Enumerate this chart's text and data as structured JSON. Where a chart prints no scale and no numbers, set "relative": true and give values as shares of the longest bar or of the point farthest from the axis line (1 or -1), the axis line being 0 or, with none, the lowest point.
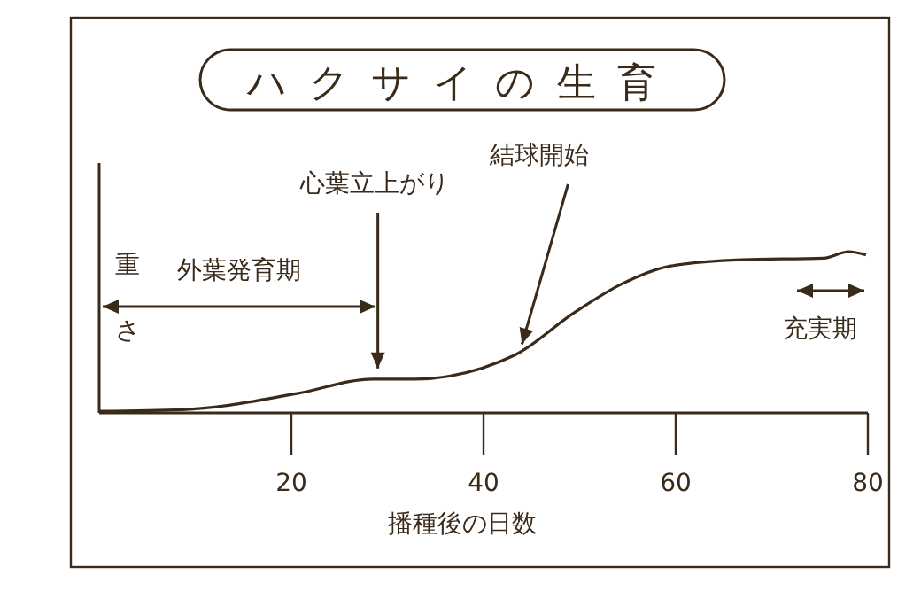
{
  "chart_data": {
    "type": "line",
    "title": "ハクサイの生育",
    "xlabel": "播種後の日数",
    "ylabel": "重さ",
    "relative": true,
    "xlim": [
      0,
      80
    ],
    "xticks": [
      20,
      40,
      60,
      80
    ],
    "grid": false,
    "marker": "none",
    "line_style": "solid",
    "series": [
      {
        "color": "#3a2a1a",
        "x": [
          0,
          8.7,
          20.6,
          28.5,
          32.8,
          43.3,
          49.4,
          54.4,
          59.4,
          66.9,
          75.4,
          78,
          79.8
        ],
        "values": [
          0.01,
          0.02,
          0.12,
          0.21,
          0.21,
          0.36,
          0.62,
          0.8,
          0.91,
          0.95,
          0.96,
          1,
          0.98
        ]
      }
    ],
    "annotations": [
      {
        "text": "心葉立上がり",
        "x": 29,
        "y": 0.21
      },
      {
        "text": "結球開始",
        "x": 44,
        "y": 0.36
      },
      "外葉発育期",
      "充実期"
    ]
  }
}
